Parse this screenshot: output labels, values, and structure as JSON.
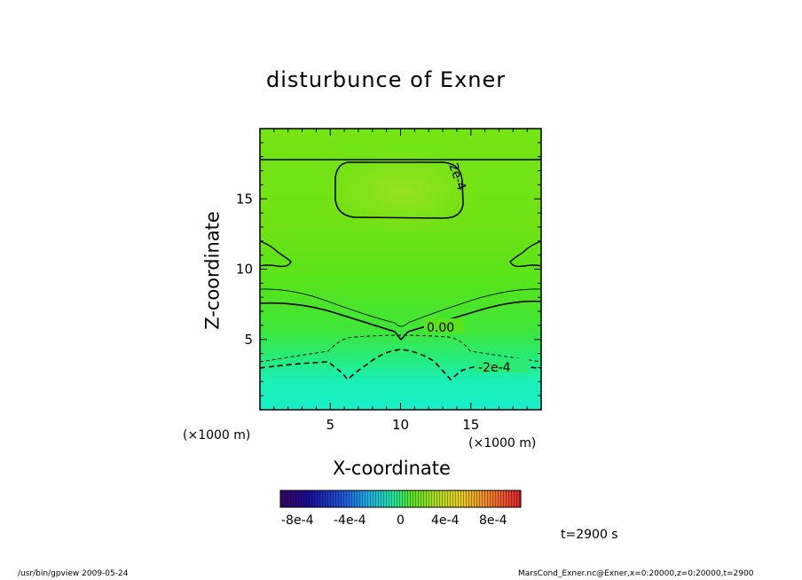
{
  "chart_data": {
    "type": "heatmap",
    "title": "disturbunce of Exner",
    "xlabel": "X-coordinate",
    "ylabel": "Z-coordinate",
    "x_unit": "(×1000 m)",
    "xlim": [
      0,
      20
    ],
    "ylim": [
      0,
      20
    ],
    "x_ticks": [
      "5",
      "10",
      "15"
    ],
    "y_ticks": [
      "5",
      "10",
      "15"
    ],
    "contour_labels": [
      "2e-4",
      "0.00",
      "-2e-4"
    ],
    "colorbar": {
      "range": [
        -0.001,
        0.001
      ],
      "tick_labels": [
        "-8e-4",
        "-4e-4",
        "0",
        "4e-4",
        "8e-4"
      ]
    },
    "grid": false
  },
  "annotations": {
    "time": "t=2900 s",
    "footer_left": "/usr/bin/gpview   2009-05-24",
    "footer_right": "MarsCond_Exner.nc@Exner,x=0:20000,z=0:20000,t=2900"
  }
}
